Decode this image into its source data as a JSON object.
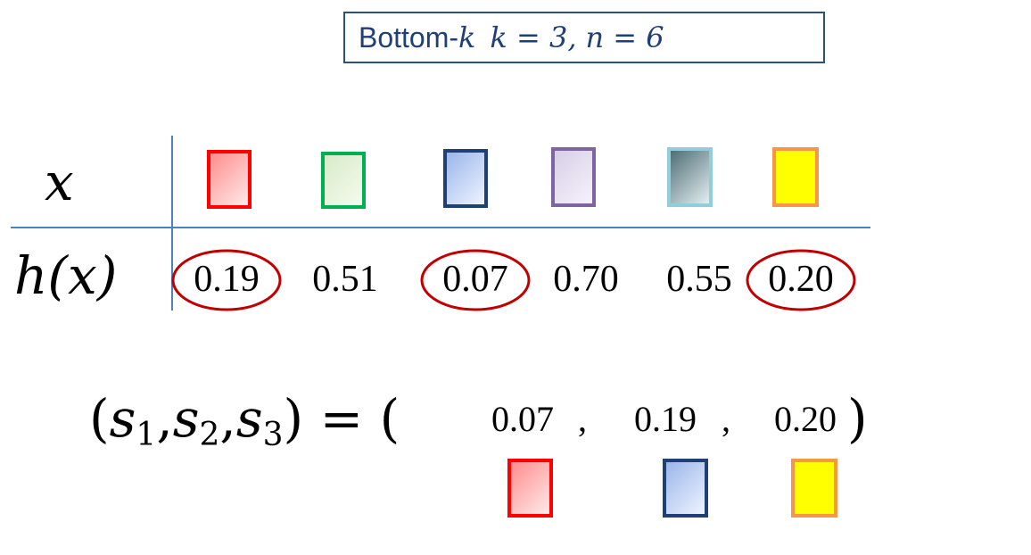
{
  "title": {
    "prefix": "Bottom-",
    "k_symbol": "k",
    "param_k": "k = 3,",
    "param_n": "n = 6"
  },
  "table": {
    "x_label": "x",
    "h_label": "h(x)",
    "items": [
      {
        "h": "0.19",
        "selected": true,
        "border": "#ff0000",
        "fill_from": "#ff8c8c",
        "fill_to": "#ffeaea"
      },
      {
        "h": "0.51",
        "selected": false,
        "border": "#00b050",
        "fill_from": "#d8ebc8",
        "fill_to": "#f5fbee"
      },
      {
        "h": "0.07",
        "selected": true,
        "border": "#1f3f77",
        "fill_from": "#9bb6ea",
        "fill_to": "#eef3ff"
      },
      {
        "h": "0.70",
        "selected": false,
        "border": "#8064a2",
        "fill_from": "#d7cfe6",
        "fill_to": "#f6f2fb"
      },
      {
        "h": "0.55",
        "selected": false,
        "border": "#92cddc",
        "fill_from": "#4e6e76",
        "fill_to": "#e4eef0"
      },
      {
        "h": "0.20",
        "selected": true,
        "border": "#f79646",
        "fill_from": "#ffff00",
        "fill_to": "#ffff00"
      }
    ],
    "ellipse_color": "#c00000",
    "line_color": "#4f81bd"
  },
  "equation": {
    "open": "(",
    "s": "s",
    "sub1": "1",
    "sub2": "2",
    "sub3": "3",
    "comma": ",",
    "close_eq": ") = (",
    "close": ")",
    "values": [
      "0.07",
      "0.19",
      "0.20"
    ]
  },
  "result_colors": [
    {
      "border": "#ff0000",
      "fill_from": "#ff8c8c",
      "fill_to": "#ffeaea"
    },
    {
      "border": "#1f3f77",
      "fill_from": "#9bb6ea",
      "fill_to": "#eef3ff"
    },
    {
      "border": "#f79646",
      "fill_from": "#ffff00",
      "fill_to": "#ffff00"
    }
  ]
}
